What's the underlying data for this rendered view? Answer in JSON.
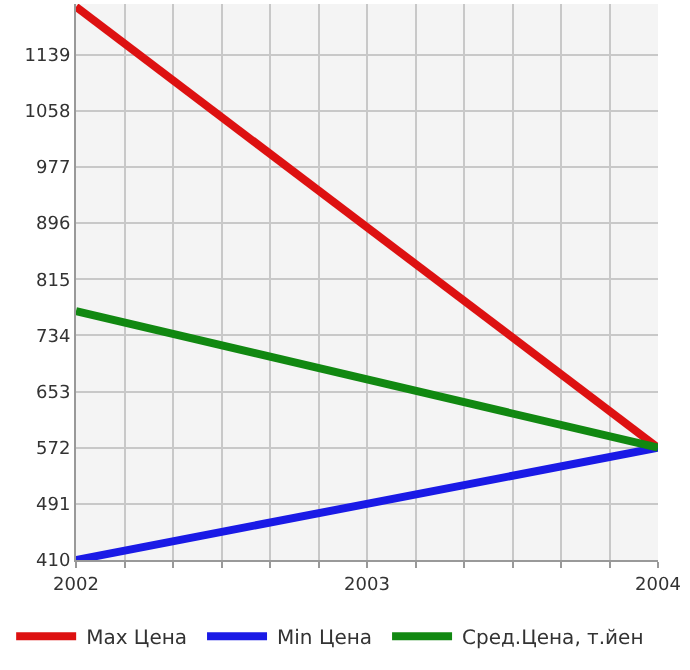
{
  "chart_data": {
    "type": "line",
    "x": [
      2002,
      2004
    ],
    "series": [
      {
        "name": "Max Цена",
        "color": "#dd1111",
        "values": [
          1208,
          572
        ]
      },
      {
        "name": "Min Цена",
        "color": "#1a1ae6",
        "values": [
          410,
          572
        ]
      },
      {
        "name": "Сред.Цена, т.йен",
        "color": "#118811",
        "values": [
          769,
          572
        ]
      }
    ],
    "xlim": [
      2002,
      2004
    ],
    "xticks": [
      2002,
      {
        "value": 2002.1667,
        "label": null
      },
      {
        "value": 2002.3333,
        "label": null
      },
      {
        "value": 2002.5,
        "label": null
      },
      {
        "value": 2002.6667,
        "label": null
      },
      {
        "value": 2002.8333,
        "label": null
      },
      2003,
      {
        "value": 2003.1667,
        "label": null
      },
      {
        "value": 2003.3333,
        "label": null
      },
      {
        "value": 2003.5,
        "label": null
      },
      {
        "value": 2003.6667,
        "label": null
      },
      {
        "value": 2003.8333,
        "label": null
      },
      2004
    ],
    "ylim": [
      410,
      1212
    ],
    "yticks": [
      410,
      491,
      572,
      653,
      734,
      815,
      896,
      977,
      1058,
      1139
    ],
    "grid": true,
    "legend": "bottom",
    "marker": "none",
    "line_style": "solid"
  }
}
